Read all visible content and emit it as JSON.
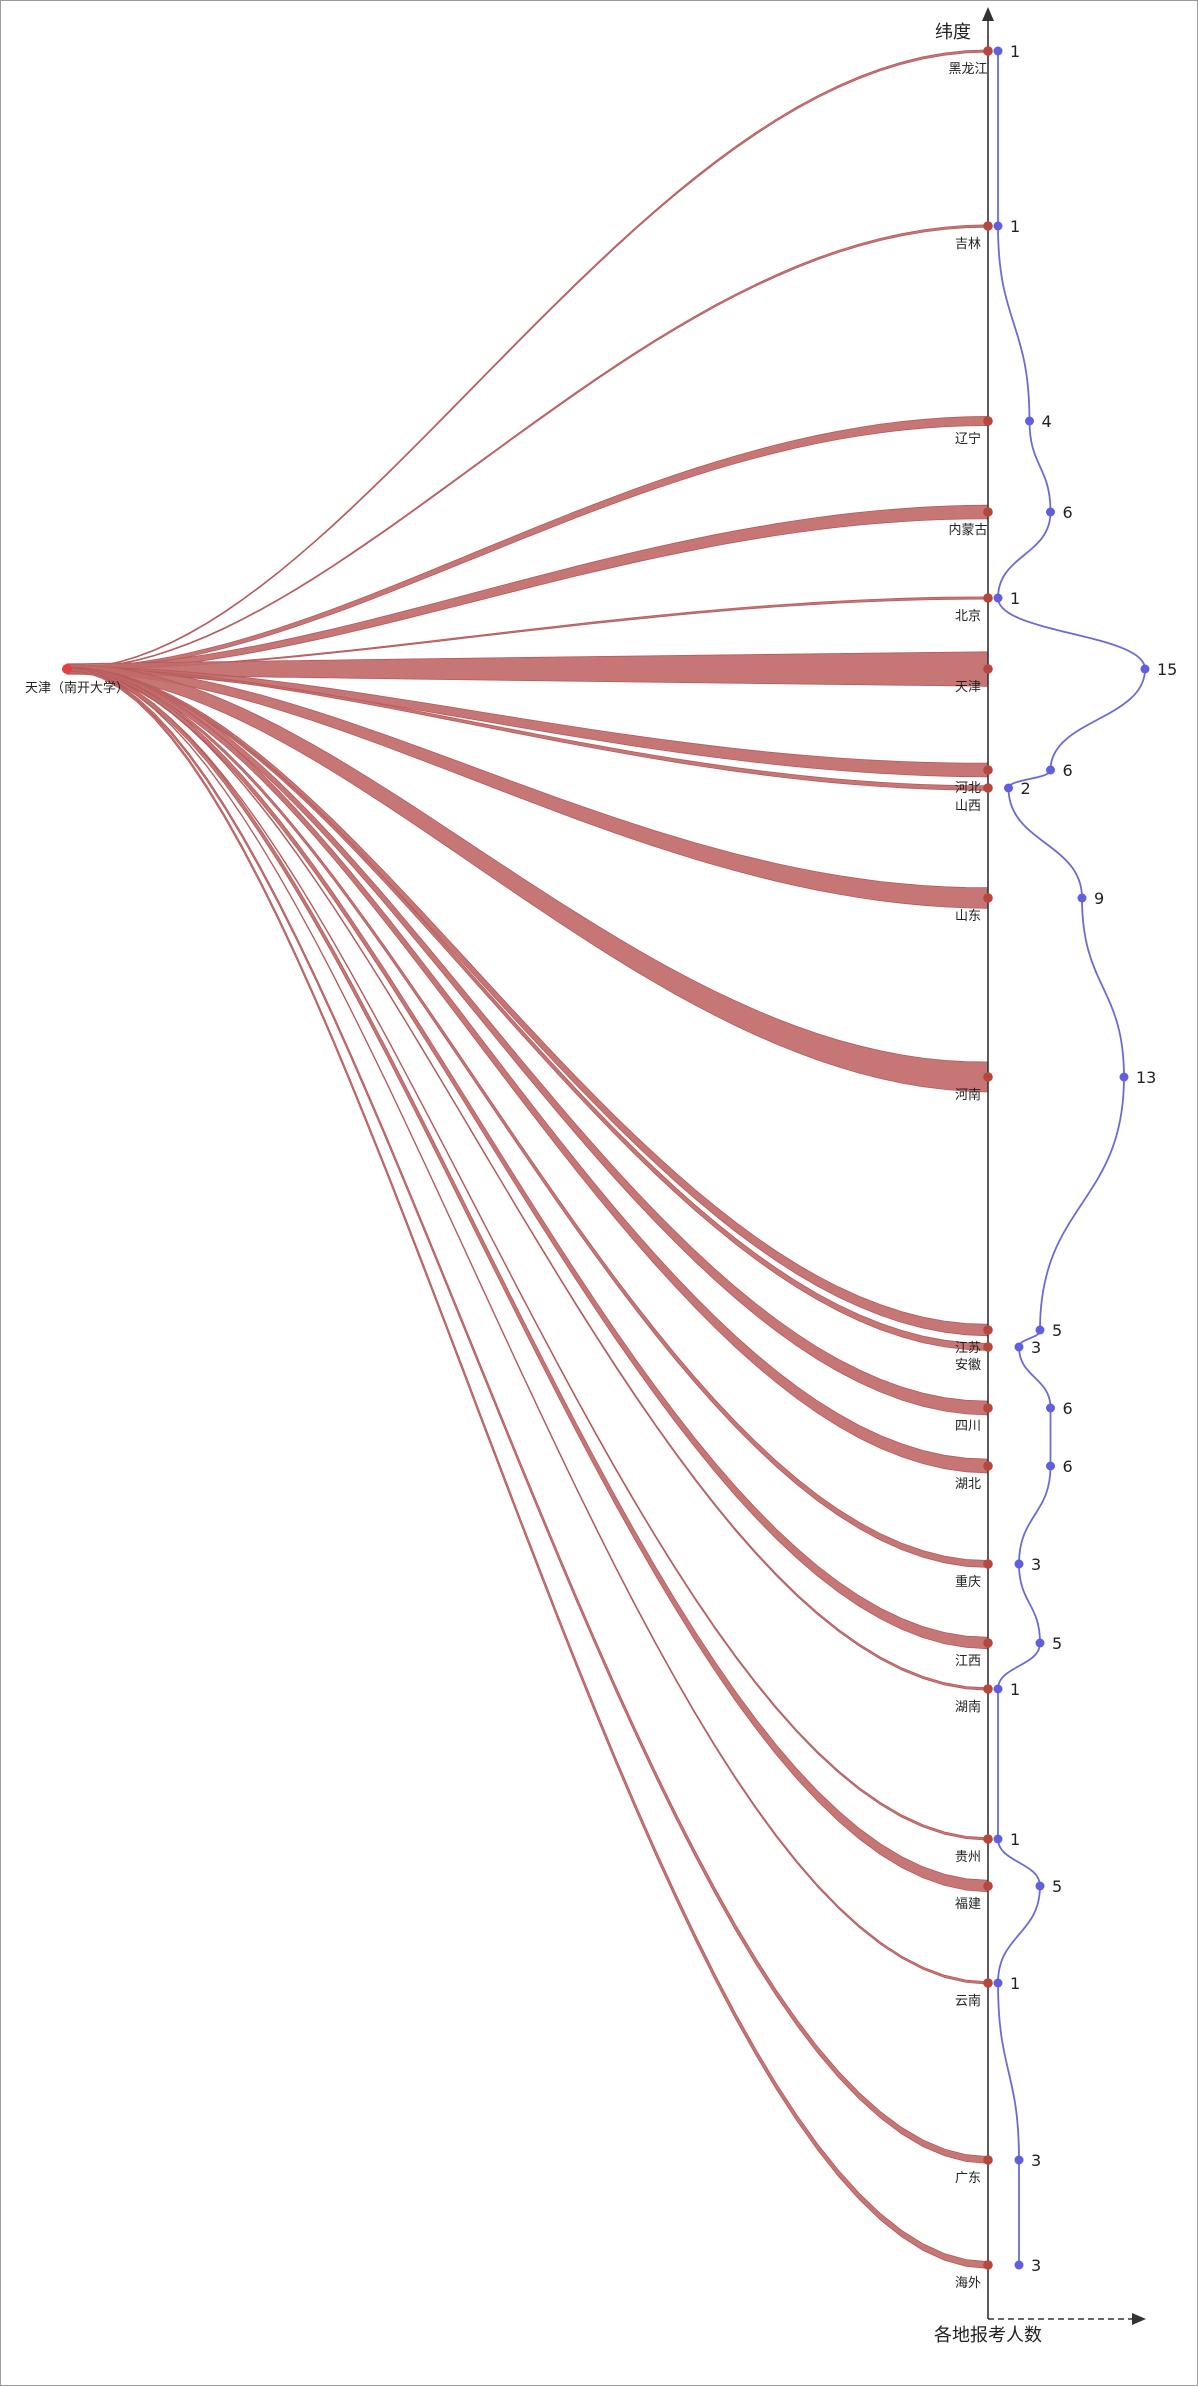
{
  "chart_data": {
    "type": "flow",
    "title": "",
    "origin": "天津（南开大学）",
    "y_axis_label": "纬度",
    "x_axis_label": "各地报考人数",
    "colors": {
      "flow": "#c26a6a",
      "flow_line": "#b55b5b",
      "province_dot": "#b5473d",
      "origin_dot": "#e04040",
      "count_line": "#6b6bd6",
      "count_dot": "#5f5fe0",
      "axis": "#333333"
    },
    "provinces": [
      {
        "name": "黑龙江",
        "count": 1
      },
      {
        "name": "吉林",
        "count": 1
      },
      {
        "name": "辽宁",
        "count": 4
      },
      {
        "name": "内蒙古",
        "count": 6
      },
      {
        "name": "北京",
        "count": 1
      },
      {
        "name": "天津",
        "count": 15
      },
      {
        "name": "河北",
        "count": 6
      },
      {
        "name": "山西",
        "count": 2
      },
      {
        "name": "山东",
        "count": 9
      },
      {
        "name": "河南",
        "count": 13
      },
      {
        "name": "江苏",
        "count": 5
      },
      {
        "name": "安徽",
        "count": 3
      },
      {
        "name": "四川",
        "count": 6
      },
      {
        "name": "湖北",
        "count": 6
      },
      {
        "name": "重庆",
        "count": 3
      },
      {
        "name": "江西",
        "count": 5
      },
      {
        "name": "湖南",
        "count": 1
      },
      {
        "name": "贵州",
        "count": 1
      },
      {
        "name": "福建",
        "count": 5
      },
      {
        "name": "云南",
        "count": 1
      },
      {
        "name": "广东",
        "count": 3
      },
      {
        "name": "海外",
        "count": 3
      }
    ]
  }
}
